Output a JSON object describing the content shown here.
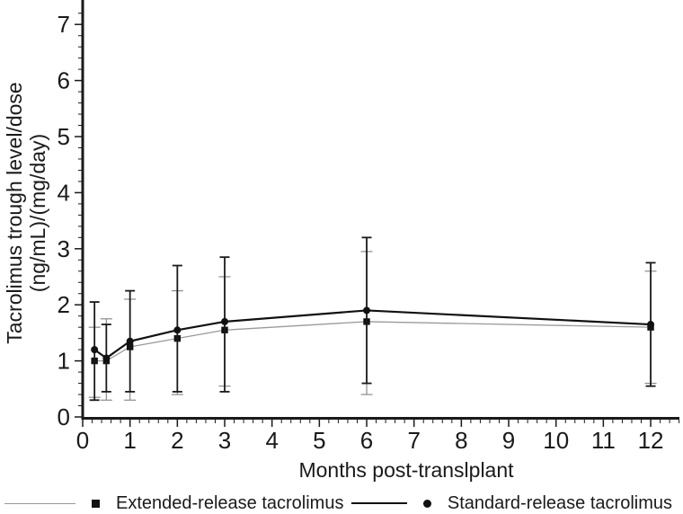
{
  "chart_data": {
    "type": "line",
    "title": "",
    "xlabel": "Months post-translplant",
    "ylabel_line1": "Tacrolimus trough level/dose",
    "ylabel_line2": "(ng/mL)/(mg/day)",
    "xlim": [
      0,
      12.6
    ],
    "ylim": [
      0,
      7.3
    ],
    "x_major_ticks": [
      0,
      1,
      2,
      3,
      4,
      5,
      6,
      7,
      8,
      9,
      10,
      11,
      12
    ],
    "y_major_ticks": [
      0,
      1,
      2,
      3,
      4,
      5,
      6,
      7
    ],
    "minor_tick_step": 0.2,
    "grid": false,
    "legend_position": "bottom",
    "axis_color": "#1a1a1a",
    "x": [
      0.25,
      0.5,
      1,
      2,
      3,
      6,
      12
    ],
    "series": [
      {
        "name": "Extended-release tacrolimus",
        "marker": "square",
        "line_color": "#9a9a9a",
        "marker_color": "#111111",
        "error_color": "#8a8a8a",
        "line_width": 1.3,
        "error_width": 1.2,
        "values": [
          1.0,
          1.0,
          1.25,
          1.4,
          1.55,
          1.7,
          1.6
        ],
        "err_low": [
          0.35,
          0.3,
          0.3,
          0.4,
          0.55,
          0.4,
          0.6
        ],
        "err_high": [
          1.6,
          1.75,
          2.1,
          2.25,
          2.5,
          2.95,
          2.6
        ]
      },
      {
        "name": "Standard-release tacrolimus",
        "marker": "circle",
        "line_color": "#111111",
        "marker_color": "#111111",
        "error_color": "#1a1a1a",
        "line_width": 2.2,
        "error_width": 1.8,
        "values": [
          1.2,
          1.05,
          1.35,
          1.55,
          1.7,
          1.9,
          1.65
        ],
        "err_low": [
          0.3,
          0.45,
          0.45,
          0.45,
          0.45,
          0.6,
          0.55
        ],
        "err_high": [
          2.05,
          1.65,
          2.25,
          2.7,
          2.85,
          3.2,
          2.75
        ]
      }
    ]
  }
}
